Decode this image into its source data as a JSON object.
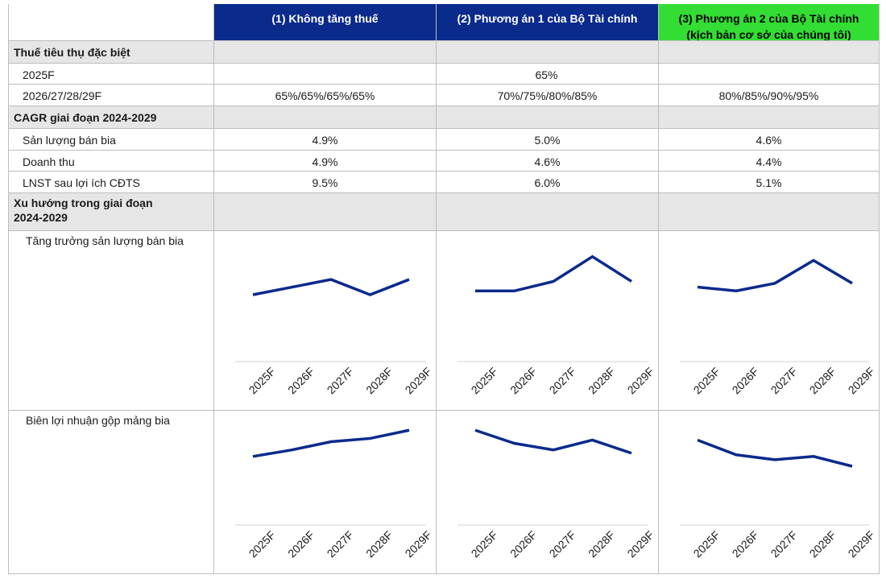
{
  "headers": [
    "(1) Không tăng thuế",
    "(2) Phương án 1 của Bộ Tài chính",
    "(3) Phương án 2 của Bộ Tài chính",
    "(kịch bản cơ sở của chúng tôi)"
  ],
  "colors": {
    "header_blue": "#0a2a8c",
    "header_green": "#33dd33",
    "section_grey": "#e6e6e6",
    "line": "#0a2a8c"
  },
  "rows": {
    "tax_section": "Thuế tiêu thụ đặc biệt",
    "r2025": {
      "label": "2025F",
      "value": "65%"
    },
    "r2026": {
      "label": "2026/27/28/29F",
      "c1": "65%/65%/65%/65%",
      "c2": "70%/75%/80%/85%",
      "c3": "80%/85%/90%/95%"
    },
    "cagr_section": "CAGR giai đoạn 2024-2029",
    "volume": {
      "label": "Sản lượng bán bia",
      "c1": "4.9%",
      "c2": "5.0%",
      "c3": "4.6%"
    },
    "revenue": {
      "label": "Doanh thu",
      "c1": "4.9%",
      "c2": "4.6%",
      "c3": "4.4%"
    },
    "npat": {
      "label": "LNST sau lợi ích CĐTS",
      "c1": "9.5%",
      "c2": "6.0%",
      "c3": "5.1%"
    },
    "trend_section_1": "Xu hướng trong giai đoạn",
    "trend_section_2": "2024-2029",
    "trend_volume_label": "Tăng trưởng sản lượng bán bia",
    "trend_margin_label": "Biên lợi nhuận gộp mảng bia"
  },
  "chart_data": [
    {
      "type": "line",
      "categories": [
        "2025F",
        "2026F",
        "2027F",
        "2028F",
        "2029F"
      ],
      "values": [
        3.0,
        3.4,
        3.8,
        3.0,
        3.8
      ],
      "ylim": [
        0,
        6
      ]
    },
    {
      "type": "line",
      "categories": [
        "2025F",
        "2026F",
        "2027F",
        "2028F",
        "2029F"
      ],
      "values": [
        3.2,
        3.2,
        3.7,
        5.0,
        3.7
      ],
      "ylim": [
        0,
        6
      ]
    },
    {
      "type": "line",
      "categories": [
        "2025F",
        "2026F",
        "2027F",
        "2028F",
        "2029F"
      ],
      "values": [
        3.4,
        3.2,
        3.6,
        4.8,
        3.6
      ],
      "ylim": [
        0,
        6
      ]
    },
    {
      "type": "line",
      "categories": [
        "2025F",
        "2026F",
        "2027F",
        "2028F",
        "2029F"
      ],
      "values": [
        3.6,
        4.0,
        4.5,
        4.7,
        5.2
      ],
      "ylim": [
        0,
        6
      ]
    },
    {
      "type": "line",
      "categories": [
        "2025F",
        "2026F",
        "2027F",
        "2028F",
        "2029F"
      ],
      "values": [
        5.2,
        4.4,
        4.0,
        4.6,
        3.8
      ],
      "ylim": [
        0,
        6
      ]
    },
    {
      "type": "line",
      "categories": [
        "2025F",
        "2026F",
        "2027F",
        "2028F",
        "2029F"
      ],
      "values": [
        4.6,
        3.7,
        3.4,
        3.6,
        3.0
      ],
      "ylim": [
        0,
        6
      ]
    }
  ]
}
